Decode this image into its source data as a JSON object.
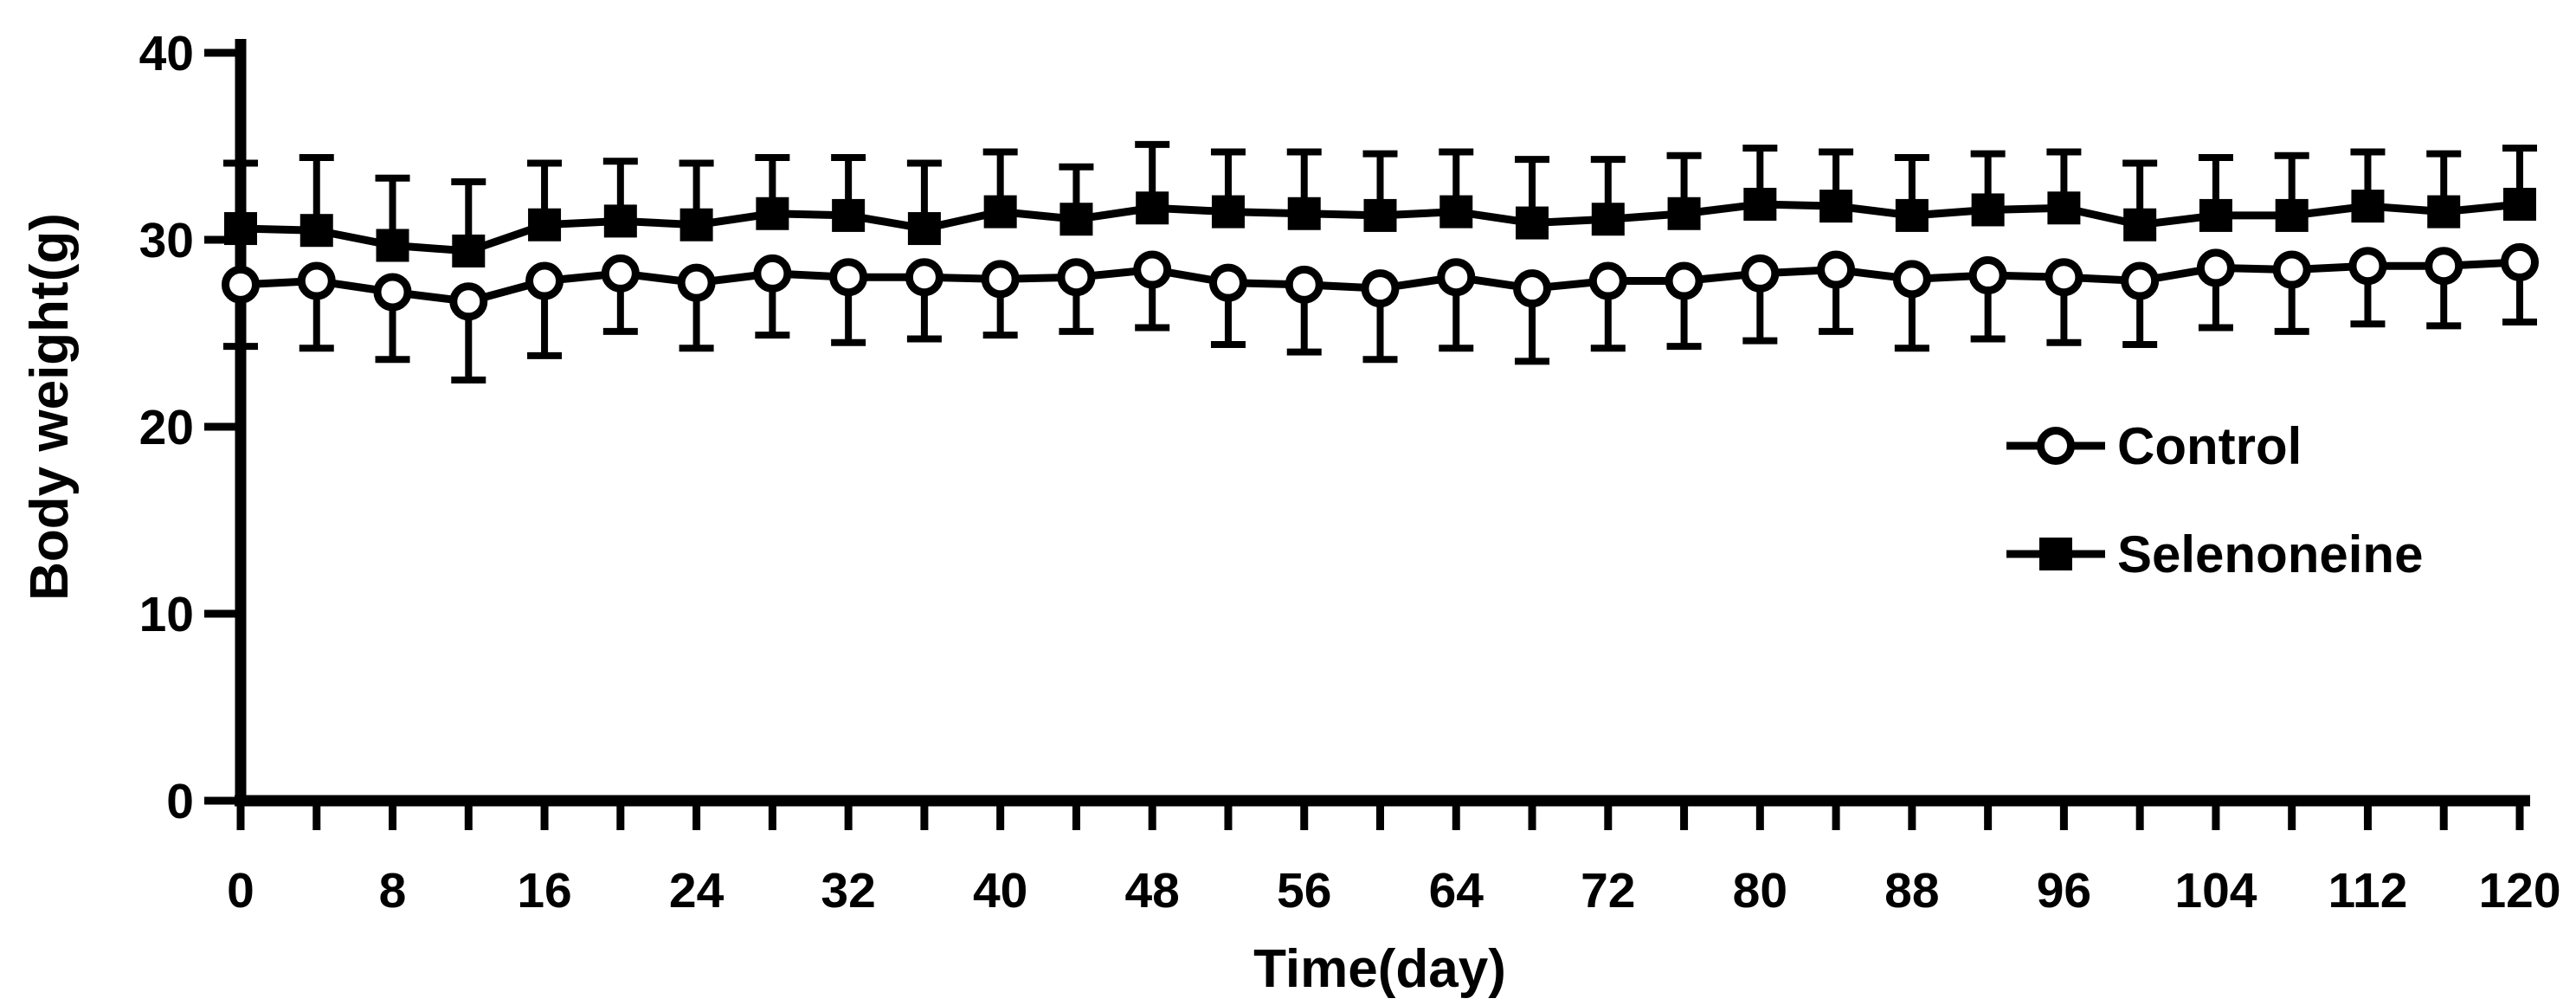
{
  "figure": {
    "background": "#ffffff",
    "foreground": "#000000"
  },
  "chart_data": {
    "type": "line",
    "title": "",
    "xlabel": "Time(day)",
    "ylabel": "Body weight(g)",
    "xlim": [
      0,
      120
    ],
    "ylim": [
      0,
      40
    ],
    "grid": false,
    "y_ticks": [
      0,
      10,
      20,
      30,
      40
    ],
    "x_major_ticks": [
      0,
      8,
      16,
      24,
      32,
      40,
      48,
      56,
      64,
      72,
      80,
      88,
      96,
      104,
      112,
      120
    ],
    "x_minor_tick_step": 4,
    "x": [
      0,
      4,
      8,
      12,
      16,
      20,
      24,
      28,
      32,
      36,
      40,
      44,
      48,
      52,
      56,
      60,
      64,
      68,
      72,
      76,
      80,
      84,
      88,
      92,
      96,
      100,
      104,
      108,
      112,
      116,
      120
    ],
    "series": [
      {
        "name": "Control",
        "marker": "circle",
        "marker_fill": "#ffffff",
        "line_color": "#000000",
        "error_direction": "down",
        "values": [
          27.6,
          27.8,
          27.2,
          26.7,
          27.8,
          28.2,
          27.7,
          28.2,
          28.0,
          28.0,
          27.9,
          28.0,
          28.4,
          27.7,
          27.6,
          27.4,
          28.0,
          27.4,
          27.8,
          27.8,
          28.2,
          28.4,
          27.9,
          28.1,
          28.0,
          27.8,
          28.5,
          28.4,
          28.6,
          28.6,
          28.8
        ],
        "errors": [
          3.3,
          3.6,
          3.6,
          4.2,
          4.0,
          3.1,
          3.5,
          3.3,
          3.5,
          3.3,
          3.0,
          2.9,
          3.1,
          3.3,
          3.6,
          3.8,
          3.8,
          3.9,
          3.6,
          3.5,
          3.6,
          3.3,
          3.7,
          3.4,
          3.5,
          3.4,
          3.2,
          3.3,
          3.1,
          3.2,
          3.2
        ]
      },
      {
        "name": "Selenoneine",
        "marker": "square",
        "marker_fill": "#000000",
        "line_color": "#000000",
        "error_direction": "up",
        "values": [
          30.6,
          30.5,
          29.7,
          29.4,
          30.8,
          31.0,
          30.8,
          31.4,
          31.3,
          30.6,
          31.5,
          31.1,
          31.7,
          31.5,
          31.4,
          31.3,
          31.5,
          30.9,
          31.1,
          31.4,
          31.9,
          31.8,
          31.3,
          31.6,
          31.7,
          30.8,
          31.3,
          31.3,
          31.8,
          31.5,
          31.9
        ],
        "errors": [
          3.5,
          3.9,
          3.6,
          3.7,
          3.3,
          3.2,
          3.3,
          3.0,
          3.1,
          3.5,
          3.2,
          2.8,
          3.4,
          3.2,
          3.3,
          3.3,
          3.2,
          3.4,
          3.2,
          3.1,
          3.0,
          2.9,
          3.1,
          3.0,
          3.0,
          3.3,
          3.1,
          3.2,
          2.9,
          3.1,
          3.0
        ]
      }
    ],
    "legend": {
      "position": "middle-right",
      "entries": [
        {
          "label": "Control",
          "marker": "circle"
        },
        {
          "label": "Selenoneine",
          "marker": "square"
        }
      ]
    }
  }
}
